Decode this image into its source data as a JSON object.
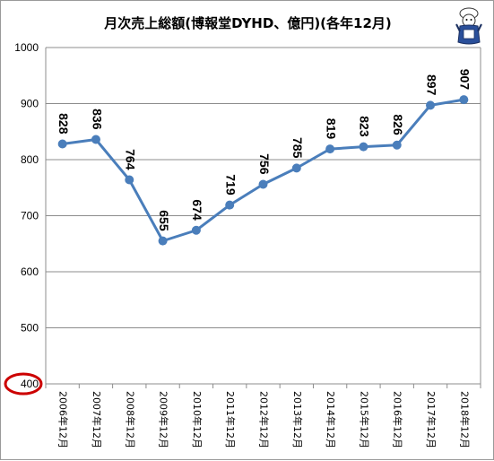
{
  "chart_data": {
    "type": "line",
    "title": "月次売上総額(博報堂DYHD、億円)(各年12月)",
    "categories": [
      "2006年12月",
      "2007年12月",
      "2008年12月",
      "2009年12月",
      "2010年12月",
      "2011年12月",
      "2012年12月",
      "2013年12月",
      "2014年12月",
      "2015年12月",
      "2016年12月",
      "2017年12月",
      "2018年12月"
    ],
    "series": [
      {
        "values": [
          828,
          836,
          764,
          655,
          674,
          719,
          756,
          785,
          819,
          823,
          826,
          897,
          907
        ]
      }
    ],
    "y_ticks": [
      "400",
      "500",
      "600",
      "700",
      "800",
      "900",
      "1000"
    ],
    "ylim": [
      400,
      1000
    ],
    "grid": true,
    "legend": "none",
    "colors": {
      "line": "#4a7ebb",
      "marker": "#4a7ebb",
      "highlight_ring": "#cc0000",
      "grid": "#8c8c8c"
    },
    "annotations": [
      {
        "type": "ellipse",
        "target": "y-axis minimum tick label",
        "text": "400"
      }
    ]
  },
  "decor": {
    "mascot_icon": "mascot-icon"
  }
}
